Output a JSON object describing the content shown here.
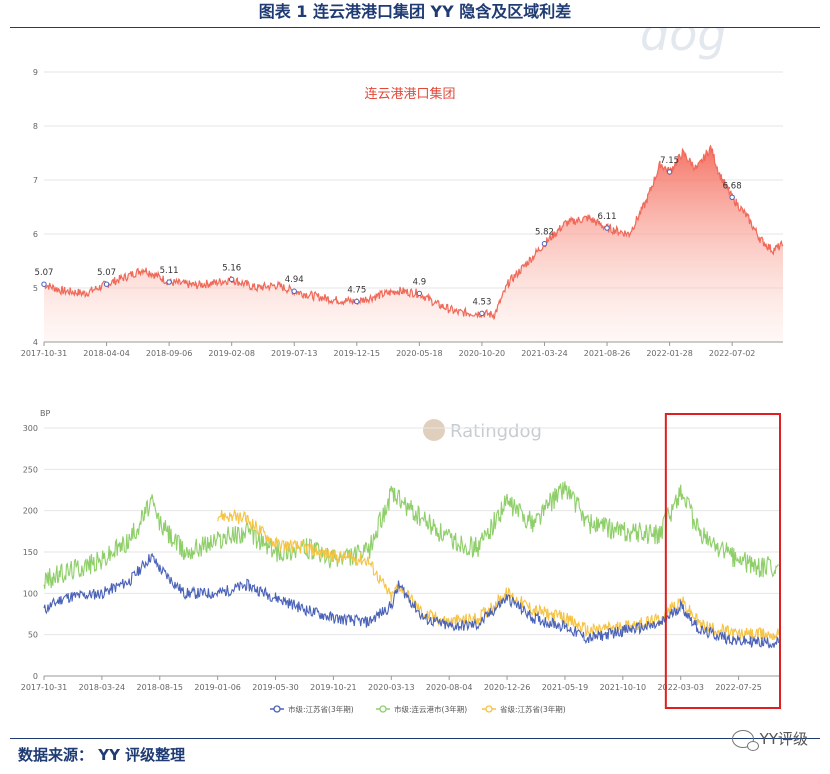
{
  "figure": {
    "title": "图表 1 连云港港口集团 YY 隐含及区域利差",
    "source": "数据来源： YY 评级整理",
    "wechat": "YY评级",
    "watermark_top": "dog",
    "watermark_bottom": "Ratingdog"
  },
  "colors": {
    "title": "#1f3b73",
    "line_top": "#ef6a5a",
    "series_city_jiangsu": "#4a62b8",
    "series_city_lyg": "#8fcf6a",
    "series_prov_jiangsu": "#f6c343",
    "highlight_box": "#e02020"
  },
  "chart_data": [
    {
      "type": "area",
      "title": "连云港港口集团",
      "ylim": [
        4,
        9
      ],
      "yticks": [
        "4",
        "5",
        "6",
        "7",
        "8",
        "9"
      ],
      "xticks": [
        "2017-10-31",
        "2018-04-04",
        "2018-09-06",
        "2019-02-08",
        "2019-07-13",
        "2019-12-15",
        "2020-05-18",
        "2020-10-20",
        "2021-03-24",
        "2021-08-26",
        "2022-01-28",
        "2022-07-02"
      ],
      "annotations": [
        {
          "x": "2017-10-31",
          "y": 5.07,
          "label": "5.07"
        },
        {
          "x": "2018-04-04",
          "y": 5.07,
          "label": "5.07"
        },
        {
          "x": "2018-09-06",
          "y": 5.11,
          "label": "5.11"
        },
        {
          "x": "2019-02-08",
          "y": 5.16,
          "label": "5.16"
        },
        {
          "x": "2019-07-13",
          "y": 4.94,
          "label": "4.94"
        },
        {
          "x": "2019-12-15",
          "y": 4.75,
          "label": "4.75"
        },
        {
          "x": "2020-05-18",
          "y": 4.9,
          "label": "4.9"
        },
        {
          "x": "2020-10-20",
          "y": 4.53,
          "label": "4.53"
        },
        {
          "x": "2021-03-24",
          "y": 5.82,
          "label": "5.82"
        },
        {
          "x": "2021-08-26",
          "y": 6.11,
          "label": "6.11"
        },
        {
          "x": "2022-01-28",
          "y": 7.15,
          "label": "7.15"
        },
        {
          "x": "2022-07-02",
          "y": 6.68,
          "label": "6.68"
        }
      ],
      "anchors": [
        [
          "2017-10-31",
          5.07
        ],
        [
          "2017-12-15",
          4.95
        ],
        [
          "2018-02-10",
          4.9
        ],
        [
          "2018-04-04",
          5.07
        ],
        [
          "2018-05-20",
          5.2
        ],
        [
          "2018-07-05",
          5.35
        ],
        [
          "2018-09-06",
          5.11
        ],
        [
          "2018-11-10",
          5.05
        ],
        [
          "2018-12-30",
          5.1
        ],
        [
          "2019-02-08",
          5.16
        ],
        [
          "2019-04-10",
          5.0
        ],
        [
          "2019-05-30",
          5.05
        ],
        [
          "2019-07-13",
          4.94
        ],
        [
          "2019-09-01",
          4.85
        ],
        [
          "2019-10-21",
          4.78
        ],
        [
          "2019-12-15",
          4.75
        ],
        [
          "2020-02-01",
          4.85
        ],
        [
          "2020-03-25",
          4.95
        ],
        [
          "2020-05-18",
          4.9
        ],
        [
          "2020-07-01",
          4.7
        ],
        [
          "2020-08-20",
          4.55
        ],
        [
          "2020-10-20",
          4.53
        ],
        [
          "2020-11-20",
          4.5
        ],
        [
          "2020-12-25",
          5.1
        ],
        [
          "2021-02-01",
          5.4
        ],
        [
          "2021-03-24",
          5.82
        ],
        [
          "2021-05-15",
          6.2
        ],
        [
          "2021-07-10",
          6.3
        ],
        [
          "2021-08-26",
          6.11
        ],
        [
          "2021-10-20",
          6.0
        ],
        [
          "2021-12-01",
          6.6
        ],
        [
          "2022-01-05",
          7.3
        ],
        [
          "2022-01-28",
          7.15
        ],
        [
          "2022-03-01",
          7.5
        ],
        [
          "2022-04-05",
          7.2
        ],
        [
          "2022-05-10",
          7.6
        ],
        [
          "2022-06-01",
          7.1
        ],
        [
          "2022-07-02",
          6.68
        ],
        [
          "2022-08-10",
          6.3
        ],
        [
          "2022-09-10",
          5.9
        ],
        [
          "2022-10-10",
          5.7
        ],
        [
          "2022-11-05",
          5.8
        ]
      ]
    },
    {
      "type": "line",
      "ylabel": "BP",
      "ylim": [
        0,
        300
      ],
      "yticks": [
        "0",
        "50",
        "100",
        "150",
        "200",
        "250",
        "300"
      ],
      "xticks": [
        "2017-10-31",
        "2018-03-24",
        "2018-08-15",
        "2019-01-06",
        "2019-05-30",
        "2019-10-21",
        "2020-03-13",
        "2020-08-04",
        "2020-12-26",
        "2021-05-19",
        "2021-10-10",
        "2022-03-03",
        "2022-07-25"
      ],
      "highlight": {
        "x_from": "2022-01-25",
        "x_to": "2022-11-05"
      },
      "series": [
        {
          "name": "市级:江苏省(3年期)",
          "anchors": [
            [
              "2017-10-31",
              80
            ],
            [
              "2017-12-20",
              95
            ],
            [
              "2018-03-24",
              100
            ],
            [
              "2018-06-01",
              115
            ],
            [
              "2018-07-25",
              145
            ],
            [
              "2018-08-15",
              130
            ],
            [
              "2018-10-15",
              100
            ],
            [
              "2019-01-06",
              100
            ],
            [
              "2019-03-20",
              110
            ],
            [
              "2019-05-30",
              95
            ],
            [
              "2019-08-15",
              80
            ],
            [
              "2019-10-21",
              70
            ],
            [
              "2020-01-15",
              65
            ],
            [
              "2020-03-13",
              85
            ],
            [
              "2020-04-01",
              110
            ],
            [
              "2020-06-01",
              70
            ],
            [
              "2020-08-04",
              60
            ],
            [
              "2020-10-15",
              62
            ],
            [
              "2020-12-26",
              95
            ],
            [
              "2021-03-01",
              70
            ],
            [
              "2021-05-19",
              60
            ],
            [
              "2021-07-15",
              45
            ],
            [
              "2021-10-10",
              55
            ],
            [
              "2022-01-10",
              62
            ],
            [
              "2022-03-03",
              85
            ],
            [
              "2022-04-20",
              55
            ],
            [
              "2022-07-25",
              42
            ],
            [
              "2022-11-01",
              40
            ]
          ]
        },
        {
          "name": "市级:连云港市(3年期)",
          "anchors": [
            [
              "2017-10-31",
              115
            ],
            [
              "2018-01-15",
              130
            ],
            [
              "2018-03-24",
              140
            ],
            [
              "2018-06-01",
              165
            ],
            [
              "2018-07-25",
              210
            ],
            [
              "2018-08-15",
              185
            ],
            [
              "2018-10-15",
              150
            ],
            [
              "2019-01-06",
              165
            ],
            [
              "2019-03-20",
              175
            ],
            [
              "2019-05-30",
              150
            ],
            [
              "2019-08-15",
              155
            ],
            [
              "2019-10-21",
              140
            ],
            [
              "2020-01-15",
              150
            ],
            [
              "2020-03-13",
              220
            ],
            [
              "2020-05-01",
              200
            ],
            [
              "2020-08-04",
              165
            ],
            [
              "2020-10-15",
              155
            ],
            [
              "2020-12-26",
              210
            ],
            [
              "2021-03-01",
              185
            ],
            [
              "2021-05-19",
              230
            ],
            [
              "2021-07-15",
              185
            ],
            [
              "2021-10-10",
              175
            ],
            [
              "2022-01-10",
              170
            ],
            [
              "2022-03-03",
              225
            ],
            [
              "2022-04-20",
              170
            ],
            [
              "2022-07-25",
              140
            ],
            [
              "2022-09-20",
              130
            ],
            [
              "2022-11-01",
              135
            ]
          ]
        },
        {
          "name": "省级:江苏省(3年期)",
          "anchors": [
            [
              "2019-01-06",
              195
            ],
            [
              "2019-03-20",
              190
            ],
            [
              "2019-05-30",
              160
            ],
            [
              "2019-08-15",
              155
            ],
            [
              "2019-10-21",
              145
            ],
            [
              "2020-01-15",
              140
            ],
            [
              "2020-03-13",
              95
            ],
            [
              "2020-04-01",
              110
            ],
            [
              "2020-06-01",
              75
            ],
            [
              "2020-08-04",
              65
            ],
            [
              "2020-10-15",
              70
            ],
            [
              "2020-12-26",
              100
            ],
            [
              "2021-03-01",
              80
            ],
            [
              "2021-05-19",
              70
            ],
            [
              "2021-07-15",
              55
            ],
            [
              "2021-10-10",
              60
            ],
            [
              "2022-01-10",
              68
            ],
            [
              "2022-03-03",
              92
            ],
            [
              "2022-04-20",
              62
            ],
            [
              "2022-07-25",
              50
            ],
            [
              "2022-11-01",
              50
            ]
          ]
        }
      ]
    }
  ]
}
